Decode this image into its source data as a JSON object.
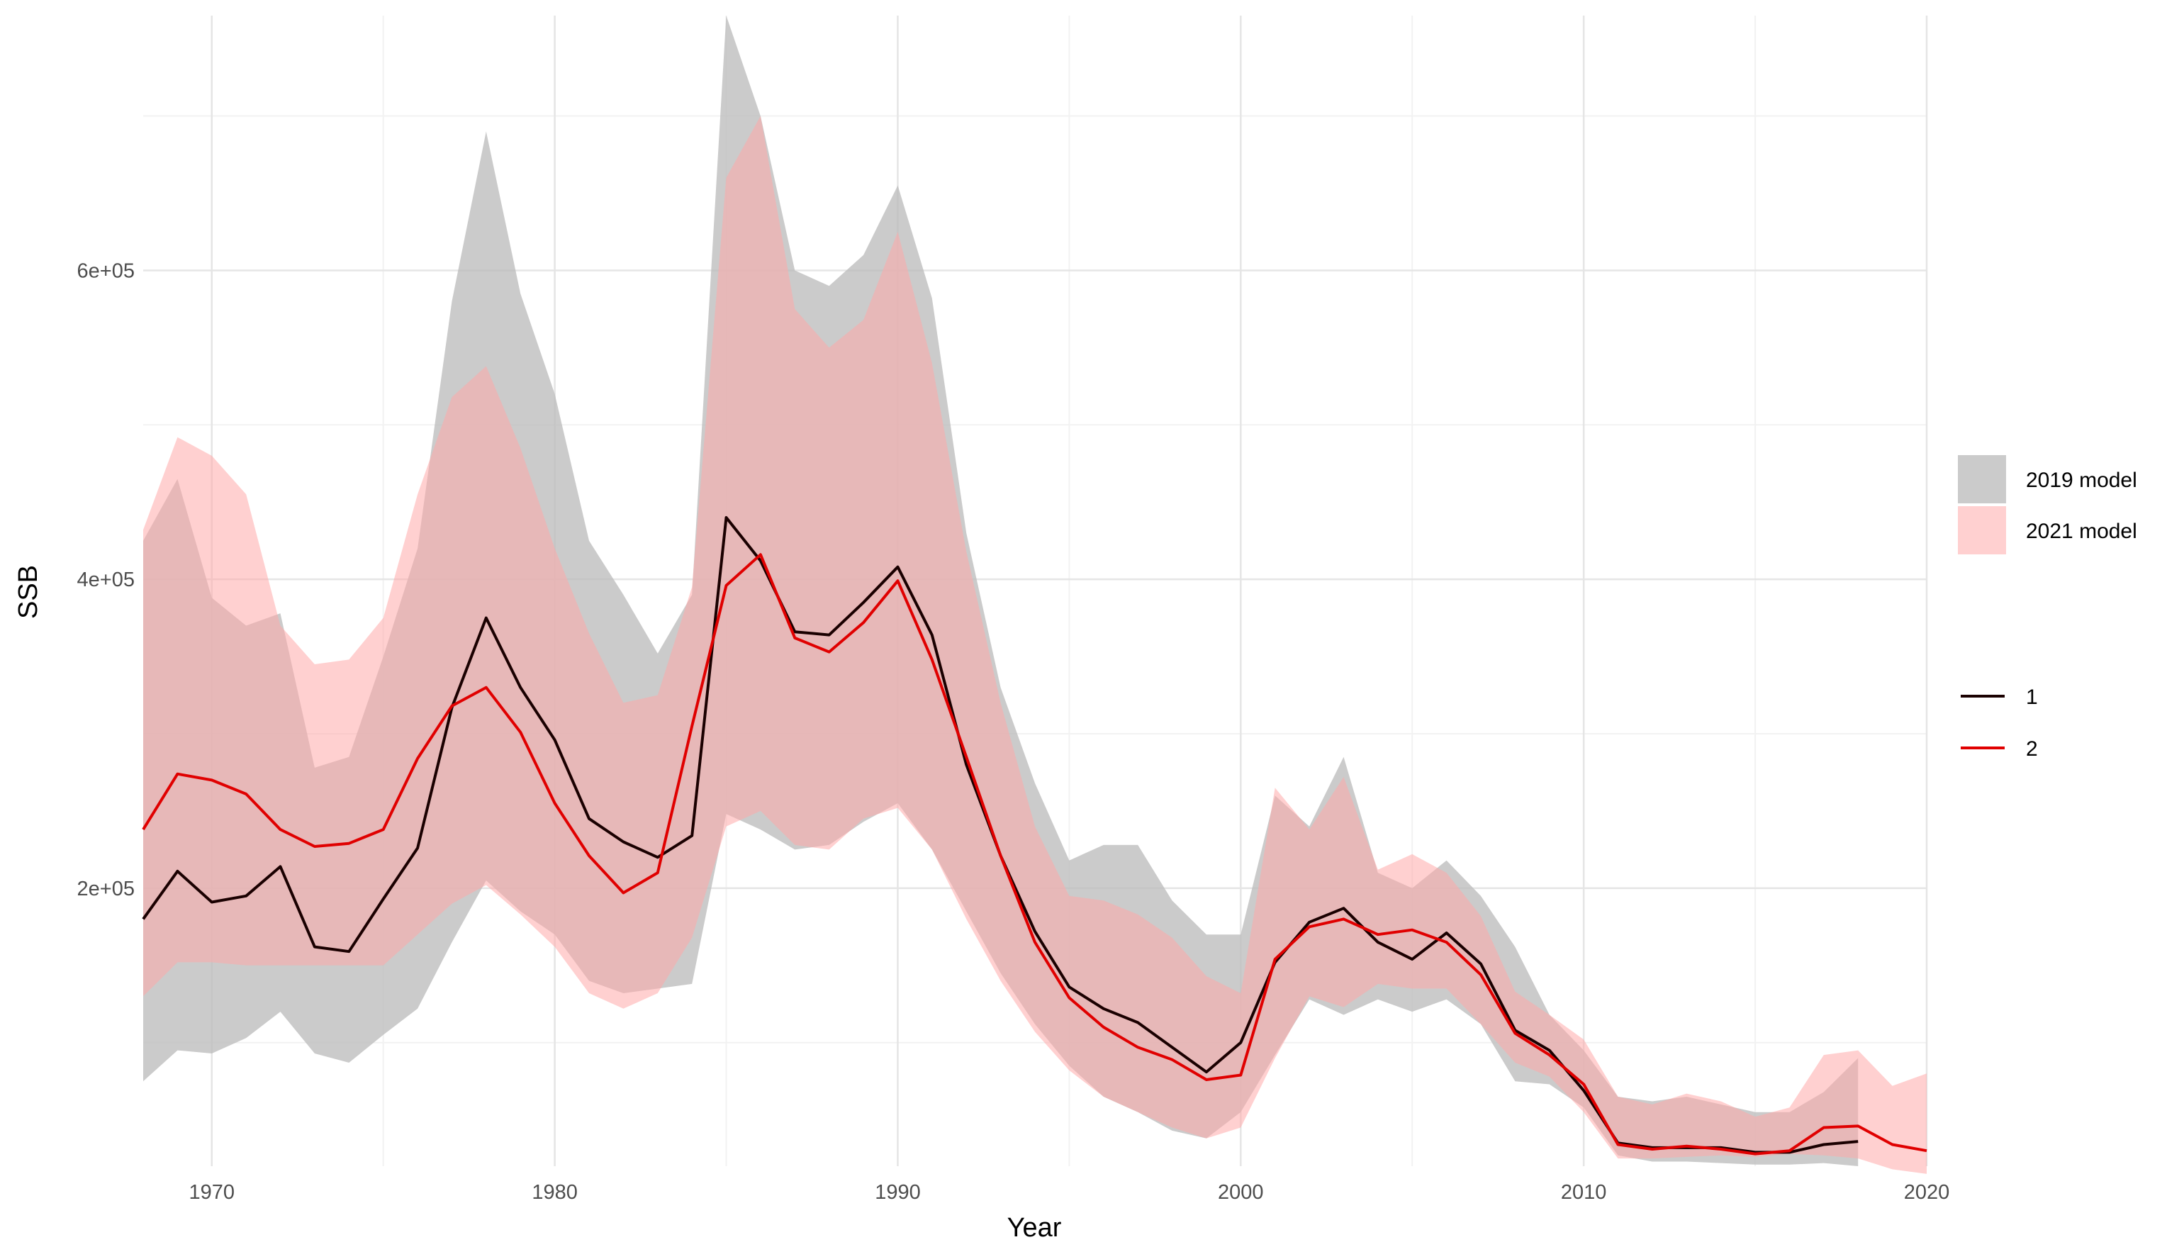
{
  "chart_data": {
    "type": "line",
    "title": "",
    "xlabel": "Year",
    "ylabel": "SSB",
    "xlim": [
      1968,
      2020
    ],
    "ylim": [
      20000,
      765000
    ],
    "x_ticks": [
      1970,
      1980,
      1990,
      2000,
      2010,
      2020
    ],
    "x_tick_labels": [
      "1970",
      "1980",
      "1990",
      "2000",
      "2010",
      "2020"
    ],
    "y_ticks": [
      200000,
      400000,
      600000
    ],
    "y_tick_labels": [
      "2e+05",
      "4e+05",
      "6e+05"
    ],
    "grid": true,
    "legend_placement": "right",
    "ribbons": [
      {
        "name": "2019 model",
        "color": "#bdbdbd",
        "opacity": 0.78,
        "x": [
          1968,
          1969,
          1970,
          1971,
          1972,
          1973,
          1974,
          1975,
          1976,
          1977,
          1978,
          1979,
          1980,
          1981,
          1982,
          1983,
          1984,
          1985,
          1986,
          1987,
          1988,
          1989,
          1990,
          1991,
          1992,
          1993,
          1994,
          1995,
          1996,
          1997,
          1998,
          1999,
          2000,
          2001,
          2002,
          2003,
          2004,
          2005,
          2006,
          2007,
          2008,
          2009,
          2010,
          2011,
          2012,
          2013,
          2014,
          2015,
          2016,
          2017,
          2018
        ],
        "upper": [
          425000,
          465000,
          388000,
          370000,
          378000,
          278000,
          285000,
          350000,
          420000,
          580000,
          690000,
          585000,
          520000,
          425000,
          390000,
          352000,
          390000,
          765000,
          700000,
          600000,
          590000,
          610000,
          655000,
          582000,
          430000,
          330000,
          268000,
          218000,
          228000,
          228000,
          192000,
          170000,
          170000,
          260000,
          240000,
          285000,
          210000,
          200000,
          218000,
          195000,
          162000,
          118000,
          95000,
          65000,
          62000,
          65000,
          60000,
          55000,
          55000,
          68000,
          90000
        ],
        "lower": [
          75000,
          95000,
          93000,
          103000,
          120000,
          93000,
          87000,
          105000,
          122000,
          165000,
          205000,
          185000,
          170000,
          140000,
          132000,
          135000,
          138000,
          248000,
          238000,
          225000,
          228000,
          243000,
          255000,
          225000,
          185000,
          145000,
          112000,
          85000,
          65000,
          55000,
          43000,
          38000,
          55000,
          92000,
          128000,
          118000,
          128000,
          120000,
          128000,
          112000,
          75000,
          73000,
          58000,
          27000,
          23000,
          23000,
          22000,
          21000,
          21000,
          22000,
          20000
        ]
      },
      {
        "name": "2021 model",
        "color": "#ffaaaa",
        "opacity": 0.55,
        "x": [
          1968,
          1969,
          1970,
          1971,
          1972,
          1973,
          1974,
          1975,
          1976,
          1977,
          1978,
          1979,
          1980,
          1981,
          1982,
          1983,
          1984,
          1985,
          1986,
          1987,
          1988,
          1989,
          1990,
          1991,
          1992,
          1993,
          1994,
          1995,
          1996,
          1997,
          1998,
          1999,
          2000,
          2001,
          2002,
          2003,
          2004,
          2005,
          2006,
          2007,
          2008,
          2009,
          2010,
          2011,
          2012,
          2013,
          2014,
          2015,
          2016,
          2017,
          2018,
          2019,
          2020
        ],
        "upper": [
          432000,
          492000,
          480000,
          455000,
          370000,
          345000,
          348000,
          375000,
          455000,
          518000,
          538000,
          485000,
          420000,
          365000,
          320000,
          325000,
          395000,
          660000,
          700000,
          575000,
          550000,
          568000,
          625000,
          540000,
          418000,
          320000,
          240000,
          195000,
          192000,
          183000,
          168000,
          143000,
          132000,
          265000,
          238000,
          272000,
          212000,
          222000,
          210000,
          182000,
          133000,
          118000,
          102000,
          65000,
          60000,
          67000,
          62000,
          52000,
          58000,
          92000,
          95000,
          72000,
          80000
        ],
        "lower": [
          130000,
          152000,
          152000,
          150000,
          150000,
          150000,
          150000,
          150000,
          170000,
          190000,
          202000,
          183000,
          162000,
          132000,
          122000,
          132000,
          168000,
          240000,
          250000,
          228000,
          225000,
          245000,
          252000,
          225000,
          180000,
          140000,
          107000,
          82000,
          65000,
          55000,
          45000,
          38000,
          45000,
          90000,
          130000,
          123000,
          138000,
          135000,
          135000,
          112000,
          87000,
          78000,
          55000,
          25000,
          25000,
          26000,
          27000,
          26000,
          28000,
          27000,
          25000,
          18000,
          15000
        ]
      }
    ],
    "series": [
      {
        "name": "1",
        "color": "#1a0000",
        "x": [
          1968,
          1969,
          1970,
          1971,
          1972,
          1973,
          1974,
          1975,
          1976,
          1977,
          1978,
          1979,
          1980,
          1981,
          1982,
          1983,
          1984,
          1985,
          1986,
          1987,
          1988,
          1989,
          1990,
          1991,
          1992,
          1993,
          1994,
          1995,
          1996,
          1997,
          1998,
          1999,
          2000,
          2001,
          2002,
          2003,
          2004,
          2005,
          2006,
          2007,
          2008,
          2009,
          2010,
          2011,
          2012,
          2013,
          2014,
          2015,
          2016,
          2017,
          2018
        ],
        "y": [
          180000,
          211000,
          191000,
          195000,
          214000,
          162000,
          159000,
          193000,
          226000,
          317000,
          375000,
          330000,
          296000,
          245000,
          230000,
          220000,
          234000,
          440000,
          412000,
          366000,
          364000,
          385000,
          408000,
          364000,
          280000,
          221000,
          172000,
          136000,
          122000,
          113000,
          97000,
          81000,
          100000,
          152000,
          178000,
          187000,
          165000,
          154000,
          171000,
          151000,
          108000,
          95000,
          69000,
          35000,
          32000,
          32000,
          32000,
          29000,
          29000,
          34000,
          36000
        ]
      },
      {
        "name": "2",
        "color": "#e00000",
        "x": [
          1968,
          1969,
          1970,
          1971,
          1972,
          1973,
          1974,
          1975,
          1976,
          1977,
          1978,
          1979,
          1980,
          1981,
          1982,
          1983,
          1984,
          1985,
          1986,
          1987,
          1988,
          1989,
          1990,
          1991,
          1992,
          1993,
          1994,
          1995,
          1996,
          1997,
          1998,
          1999,
          2000,
          2001,
          2002,
          2003,
          2004,
          2005,
          2006,
          2007,
          2008,
          2009,
          2010,
          2011,
          2012,
          2013,
          2014,
          2015,
          2016,
          2017,
          2018,
          2019,
          2020
        ],
        "y": [
          238000,
          274000,
          270000,
          261000,
          238000,
          227000,
          229000,
          238000,
          284000,
          318000,
          330000,
          301000,
          255000,
          221000,
          197000,
          210000,
          305000,
          396000,
          416000,
          362000,
          353000,
          372000,
          399000,
          348000,
          285000,
          221000,
          165000,
          129000,
          110000,
          97000,
          89000,
          76000,
          79000,
          154000,
          175000,
          180000,
          170000,
          173000,
          165000,
          144000,
          106000,
          92000,
          73000,
          34000,
          31000,
          33000,
          31000,
          28000,
          30000,
          45000,
          46000,
          34000,
          30000
        ]
      }
    ],
    "legend_fill_title": "",
    "legend_line_title": ""
  }
}
